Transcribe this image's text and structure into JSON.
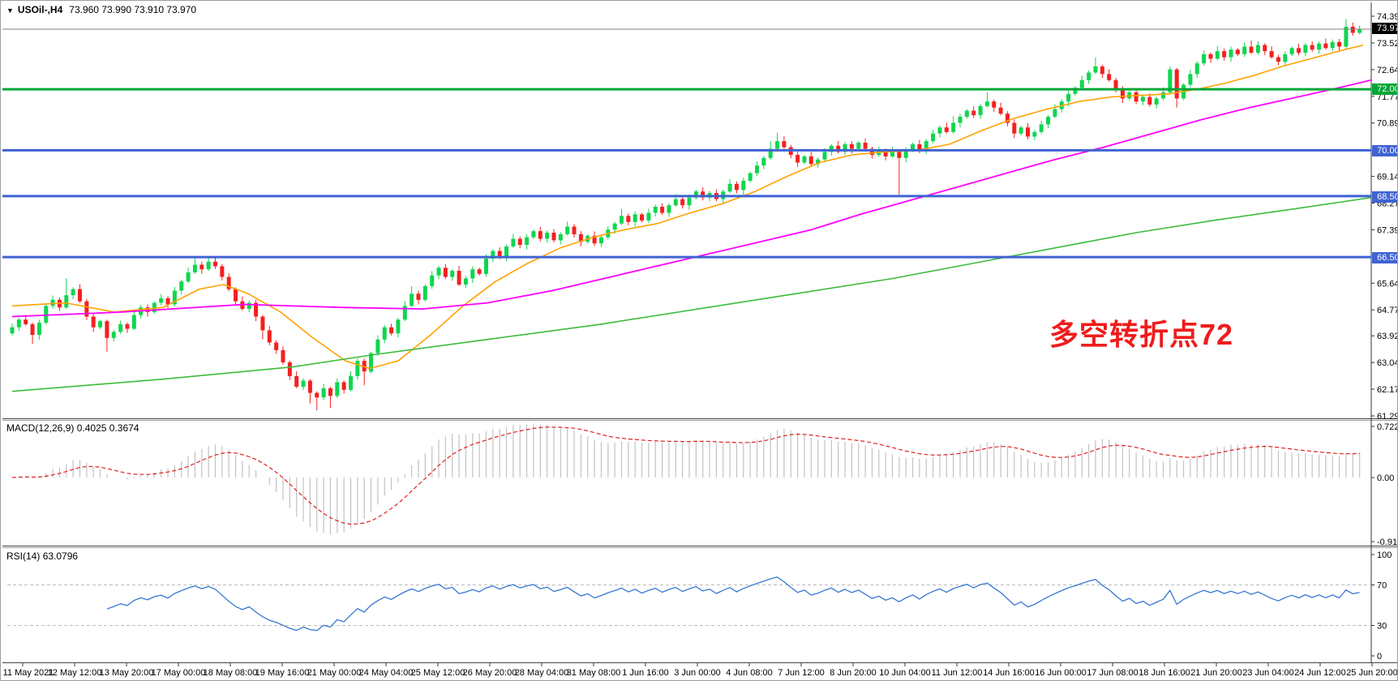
{
  "header": {
    "collapse": "▼",
    "symbol": "USOil-,H4",
    "ohlc": "73.960 73.990 73.910 73.970"
  },
  "colors": {
    "bull": "#0fd64f",
    "bear": "#f42020",
    "ma_fast": "#ffa200",
    "ma_mid": "#ff00ff",
    "ma_slow": "#3dbb3d",
    "level_green": "#00a636",
    "level_blue": "#3f63d2",
    "current_line": "#808080",
    "macd_hist": "#c2c2c2",
    "macd_signal": "#e02020",
    "rsi_line": "#3577d4",
    "annotation": "#ef1c1c"
  },
  "chart_data": {
    "type": "candlestick",
    "symbol": "USOil-",
    "timeframe": "H4",
    "ohlc_display": [
      73.96,
      73.99,
      73.91,
      73.97
    ],
    "x_labels": [
      "11 May 2021",
      "12 May 12:00",
      "13 May 20:00",
      "17 May 00:00",
      "18 May 08:00",
      "19 May 16:00",
      "21 May 00:00",
      "24 May 04:00",
      "25 May 12:00",
      "26 May 20:00",
      "28 May 04:00",
      "31 May 08:00",
      "1 Jun 16:00",
      "3 Jun 00:00",
      "4 Jun 08:00",
      "7 Jun 12:00",
      "8 Jun 20:00",
      "10 Jun 04:00",
      "11 Jun 12:00",
      "14 Jun 16:00",
      "16 Jun 00:00",
      "17 Jun 08:00",
      "18 Jun 16:00",
      "21 Jun 20:00",
      "23 Jun 04:00",
      "24 Jun 12:00",
      "25 Jun 20:00"
    ],
    "y_axis_labels": [
      74.395,
      73.52,
      72.645,
      71.77,
      70.895,
      69.145,
      68.27,
      67.395,
      65.645,
      64.77,
      63.92,
      63.045,
      62.17,
      61.295
    ],
    "price_lines": {
      "current": {
        "label": "73.970",
        "value": 73.97
      },
      "levels": [
        {
          "label": "72.000",
          "value": 72.0,
          "color": "green"
        },
        {
          "label": "70.000",
          "value": 70.0,
          "color": "blue"
        },
        {
          "label": "68.500",
          "value": 68.5,
          "color": "blue"
        },
        {
          "label": "66.500",
          "value": 66.5,
          "color": "blue"
        }
      ]
    },
    "candles": {
      "open_first": 64.0,
      "closes": [
        64.2,
        64.45,
        64.3,
        63.95,
        64.35,
        64.9,
        65.1,
        64.85,
        65.25,
        65.45,
        65.05,
        64.55,
        64.2,
        64.4,
        63.85,
        64.05,
        64.3,
        64.15,
        64.6,
        64.85,
        64.7,
        65.0,
        65.15,
        64.95,
        65.4,
        65.7,
        66.0,
        66.25,
        66.1,
        66.35,
        66.2,
        65.85,
        65.45,
        65.05,
        64.8,
        65.0,
        64.55,
        64.1,
        63.7,
        63.45,
        63.05,
        62.6,
        62.25,
        62.45,
        62.05,
        61.9,
        62.2,
        61.95,
        62.4,
        62.15,
        62.6,
        63.1,
        62.75,
        63.35,
        63.8,
        64.2,
        64.0,
        64.45,
        64.9,
        65.3,
        65.1,
        65.55,
        65.9,
        66.15,
        65.85,
        66.05,
        65.6,
        65.8,
        66.1,
        65.95,
        66.45,
        66.7,
        66.5,
        66.85,
        67.1,
        66.9,
        67.15,
        67.35,
        67.1,
        67.3,
        67.05,
        67.25,
        67.5,
        67.25,
        67.0,
        67.2,
        66.95,
        67.15,
        67.4,
        67.6,
        67.85,
        67.65,
        67.9,
        67.7,
        67.95,
        68.15,
        67.95,
        68.2,
        68.4,
        68.2,
        68.45,
        68.65,
        68.45,
        68.6,
        68.4,
        68.65,
        68.9,
        68.7,
        69.0,
        69.25,
        69.5,
        69.75,
        70.05,
        70.3,
        70.1,
        69.85,
        69.6,
        69.8,
        69.55,
        69.7,
        69.95,
        70.15,
        69.95,
        70.2,
        70.05,
        70.25,
        70.05,
        69.85,
        70.0,
        69.8,
        69.95,
        69.75,
        70.0,
        70.2,
        70.0,
        70.3,
        70.55,
        70.75,
        70.6,
        70.9,
        71.1,
        71.3,
        71.15,
        71.45,
        71.6,
        71.4,
        71.2,
        70.9,
        70.55,
        70.75,
        70.45,
        70.6,
        70.85,
        71.1,
        71.35,
        71.6,
        71.85,
        72.05,
        72.3,
        72.55,
        72.75,
        72.5,
        72.3,
        72.0,
        71.7,
        71.9,
        71.6,
        71.75,
        71.5,
        71.7,
        71.9,
        72.65,
        71.7,
        72.15,
        72.5,
        72.85,
        73.15,
        73.0,
        73.25,
        73.05,
        73.3,
        73.15,
        73.4,
        73.2,
        73.45,
        73.25,
        73.05,
        72.9,
        73.15,
        73.35,
        73.2,
        73.45,
        73.3,
        73.5,
        73.35,
        73.55,
        73.4,
        74.05,
        73.85,
        73.97
      ],
      "wick_cycle_hi": [
        0.12,
        0.06,
        0.16,
        0.08,
        0.1,
        0.05,
        0.14,
        0.07
      ],
      "wick_cycle_lo": [
        0.07,
        0.13,
        0.05,
        0.11,
        0.15,
        0.06,
        0.09,
        0.12
      ],
      "wick_overrides": {
        "3": [
          0.05,
          0.3
        ],
        "8": [
          0.55,
          0.05
        ],
        "14": [
          0.05,
          0.45
        ],
        "27": [
          0.25,
          0.05
        ],
        "29": [
          0.18,
          0.05
        ],
        "37": [
          0.05,
          0.3
        ],
        "44": [
          0.05,
          0.35
        ],
        "45": [
          0.05,
          0.42
        ],
        "47": [
          0.05,
          0.4
        ],
        "52": [
          0.08,
          0.45
        ],
        "59": [
          0.25,
          0.05
        ],
        "90": [
          0.22,
          0.05
        ],
        "112": [
          0.25,
          0.06
        ],
        "113": [
          0.28,
          0.05
        ],
        "131": [
          0.05,
          1.2
        ],
        "139": [
          0.22,
          0.05
        ],
        "144": [
          0.3,
          0.05
        ],
        "160": [
          0.3,
          0.05
        ],
        "171": [
          0.1,
          0.05
        ],
        "172": [
          0.05,
          0.3
        ],
        "183": [
          0.2,
          0.05
        ],
        "197": [
          0.25,
          0.08
        ],
        "199": [
          0.12,
          0.05
        ]
      }
    },
    "moving_averages": [
      {
        "name": "ma-fast-orange",
        "color": "#ffa200",
        "width": 1.6,
        "points": [
          [
            14,
            64.9
          ],
          [
            80,
            65.0
          ],
          [
            140,
            64.7
          ],
          [
            200,
            64.85
          ],
          [
            245,
            65.45
          ],
          [
            275,
            65.6
          ],
          [
            305,
            65.3
          ],
          [
            345,
            64.7
          ],
          [
            385,
            63.85
          ],
          [
            425,
            63.1
          ],
          [
            455,
            62.85
          ],
          [
            490,
            63.1
          ],
          [
            530,
            63.95
          ],
          [
            570,
            64.9
          ],
          [
            610,
            65.7
          ],
          [
            650,
            66.3
          ],
          [
            690,
            66.8
          ],
          [
            730,
            67.15
          ],
          [
            770,
            67.4
          ],
          [
            810,
            67.6
          ],
          [
            850,
            67.95
          ],
          [
            890,
            68.25
          ],
          [
            930,
            68.65
          ],
          [
            970,
            69.15
          ],
          [
            1010,
            69.6
          ],
          [
            1050,
            69.85
          ],
          [
            1090,
            69.95
          ],
          [
            1130,
            70.0
          ],
          [
            1170,
            70.2
          ],
          [
            1210,
            70.65
          ],
          [
            1250,
            71.05
          ],
          [
            1290,
            71.35
          ],
          [
            1330,
            71.6
          ],
          [
            1370,
            71.75
          ],
          [
            1405,
            71.8
          ],
          [
            1440,
            71.85
          ],
          [
            1475,
            72.0
          ],
          [
            1510,
            72.2
          ],
          [
            1545,
            72.45
          ],
          [
            1580,
            72.75
          ],
          [
            1615,
            73.0
          ],
          [
            1650,
            73.25
          ],
          [
            1680,
            73.45
          ]
        ]
      },
      {
        "name": "ma-mid-magenta",
        "color": "#ff00ff",
        "width": 1.8,
        "points": [
          [
            14,
            64.55
          ],
          [
            150,
            64.7
          ],
          [
            300,
            64.95
          ],
          [
            420,
            64.85
          ],
          [
            520,
            64.8
          ],
          [
            600,
            65.0
          ],
          [
            680,
            65.4
          ],
          [
            760,
            65.9
          ],
          [
            840,
            66.4
          ],
          [
            920,
            66.9
          ],
          [
            1000,
            67.4
          ],
          [
            1060,
            67.9
          ],
          [
            1120,
            68.35
          ],
          [
            1180,
            68.8
          ],
          [
            1240,
            69.25
          ],
          [
            1300,
            69.7
          ],
          [
            1360,
            70.1
          ],
          [
            1420,
            70.55
          ],
          [
            1480,
            71.0
          ],
          [
            1540,
            71.4
          ],
          [
            1600,
            71.75
          ],
          [
            1650,
            72.05
          ],
          [
            1690,
            72.3
          ]
        ]
      },
      {
        "name": "ma-slow-green",
        "color": "#3dbb3d",
        "width": 1.6,
        "points": [
          [
            14,
            62.1
          ],
          [
            200,
            62.5
          ],
          [
            360,
            62.9
          ],
          [
            460,
            63.3
          ],
          [
            600,
            63.8
          ],
          [
            740,
            64.3
          ],
          [
            860,
            64.8
          ],
          [
            980,
            65.3
          ],
          [
            1100,
            65.8
          ],
          [
            1200,
            66.3
          ],
          [
            1300,
            66.8
          ],
          [
            1400,
            67.3
          ],
          [
            1500,
            67.72
          ],
          [
            1600,
            68.1
          ],
          [
            1690,
            68.45
          ]
        ]
      }
    ],
    "annotation": {
      "text": "多空转折点72",
      "color": "#ef1c1c"
    },
    "macd": {
      "name": "MACD(12,26,9)",
      "values_text": "0.4025 0.3674",
      "macd_value": 0.4025,
      "signal_value": 0.3674,
      "params": [
        12,
        26,
        9
      ],
      "axis_labels": [
        "0.7229",
        "0.00",
        "-0.9185"
      ],
      "axis_max": 0.7229,
      "axis_min": -0.9185
    },
    "rsi": {
      "name": "RSI(14)",
      "value_text": "63.0796",
      "value": 63.0796,
      "period": 14,
      "axis_labels": [
        "100",
        "70",
        "30",
        "0"
      ],
      "levels": [
        70,
        30
      ],
      "range": [
        0,
        100
      ]
    }
  }
}
